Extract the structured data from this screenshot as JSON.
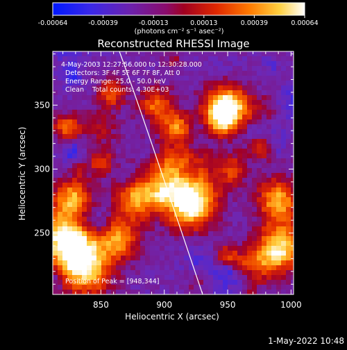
{
  "colorbar": {
    "tick_labels": [
      "-0.00064",
      "-0.00039",
      "-0.00013",
      "0.00013",
      "0.00039",
      "0.00064"
    ],
    "unit_label": "(photons cm⁻² s⁻¹ asec⁻²)"
  },
  "image": {
    "title": "Reconstructed RHESSI Image",
    "info_lines": [
      "4-May-2003 12:27:56.000 to 12:30:28.000",
      "Detectors: 3F 4F 5F 6F 7F 8F, Att 0",
      "Energy Range: 25.0 - 50.0 keV",
      "Clean    Total counts: 4.30E+03"
    ],
    "peak_label": "Position of Peak = [948,344]"
  },
  "axes": {
    "xlabel": "Heliocentric X (arcsec)",
    "ylabel": "Heliocentric Y (arcsec)",
    "x_ticks": [
      "850",
      "900",
      "950",
      "1000"
    ],
    "y_ticks": [
      "250",
      "300",
      "350"
    ],
    "x_range": [
      812,
      1002
    ],
    "y_range": [
      202,
      392
    ]
  },
  "footer": {
    "timestamp": "1-May-2022 10:48"
  }
}
